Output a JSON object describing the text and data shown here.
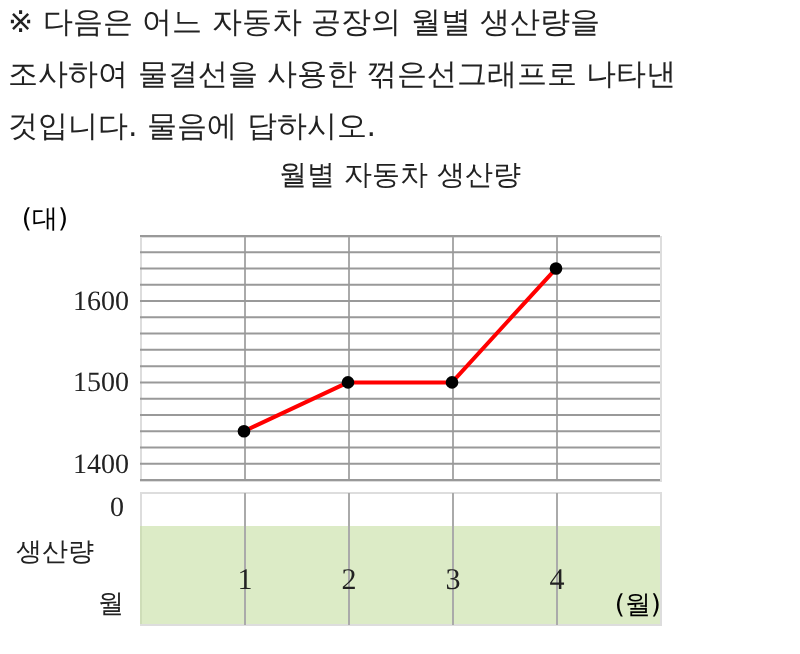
{
  "chart_data": {
    "type": "line",
    "title": "월별 자동차 생산량",
    "annotations": [
      "※ 다음은 어느 자동차 공장의 월별 생산량을 조사하여 물결선을 사용한 꺾은선그래프로 나타낸 것입니다. 물음에 답하시오.",
      "0",
      "생산량",
      "월"
    ],
    "ylabel": "(대)",
    "xlabel": "(월)",
    "categories": [
      "1",
      "2",
      "3",
      "4"
    ],
    "series": [
      {
        "color": "#ff0000",
        "values": [
          1440,
          1500,
          1500,
          1640
        ]
      }
    ],
    "ylim": [
      1380,
      1680
    ],
    "yticks": [
      {
        "value": 1380,
        "label": null
      },
      1400,
      {
        "value": 1420,
        "label": null
      },
      {
        "value": 1440,
        "label": null
      },
      {
        "value": 1460,
        "label": null
      },
      {
        "value": 1480,
        "label": null
      },
      1500,
      {
        "value": 1520,
        "label": null
      },
      {
        "value": 1540,
        "label": null
      },
      {
        "value": 1560,
        "label": null
      },
      {
        "value": 1580,
        "label": null
      },
      1600,
      {
        "value": 1620,
        "label": null
      },
      {
        "value": 1640,
        "label": null
      },
      {
        "value": 1660,
        "label": null
      },
      {
        "value": 1680,
        "label": null
      }
    ],
    "grid": true,
    "marker": "circle",
    "line_style": "solid",
    "legend": false
  }
}
